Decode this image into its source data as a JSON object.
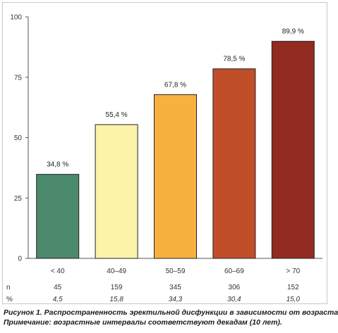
{
  "chart_data": {
    "type": "bar",
    "categories": [
      "< 40",
      "40–49",
      "50–59",
      "60–69",
      "> 70"
    ],
    "values": [
      34.8,
      55.4,
      67.8,
      78.5,
      89.9
    ],
    "value_labels": [
      "34,8 %",
      "55,4 %",
      "67,8 %",
      "78,5 %",
      "89,9 %"
    ],
    "colors": [
      "#4a8a6a",
      "#fbf3a8",
      "#f7b13f",
      "#c04e29",
      "#922b20"
    ],
    "ylim": [
      0,
      100
    ],
    "yticks": [
      0,
      25,
      50,
      75,
      100
    ],
    "grid": false,
    "table": {
      "row_labels": [
        "n",
        "%"
      ],
      "n": [
        "45",
        "159",
        "345",
        "306",
        "152"
      ],
      "percent": [
        "4,5",
        "15,8",
        "34,3",
        "30,4",
        "15,0"
      ]
    }
  },
  "caption": {
    "line1": "Рисунок 1. Распространенность эректильной дисфункции в зависимости от возраста",
    "line2": "Примечание: возрастные интервалы соответствуют декадам (10 лет)."
  }
}
